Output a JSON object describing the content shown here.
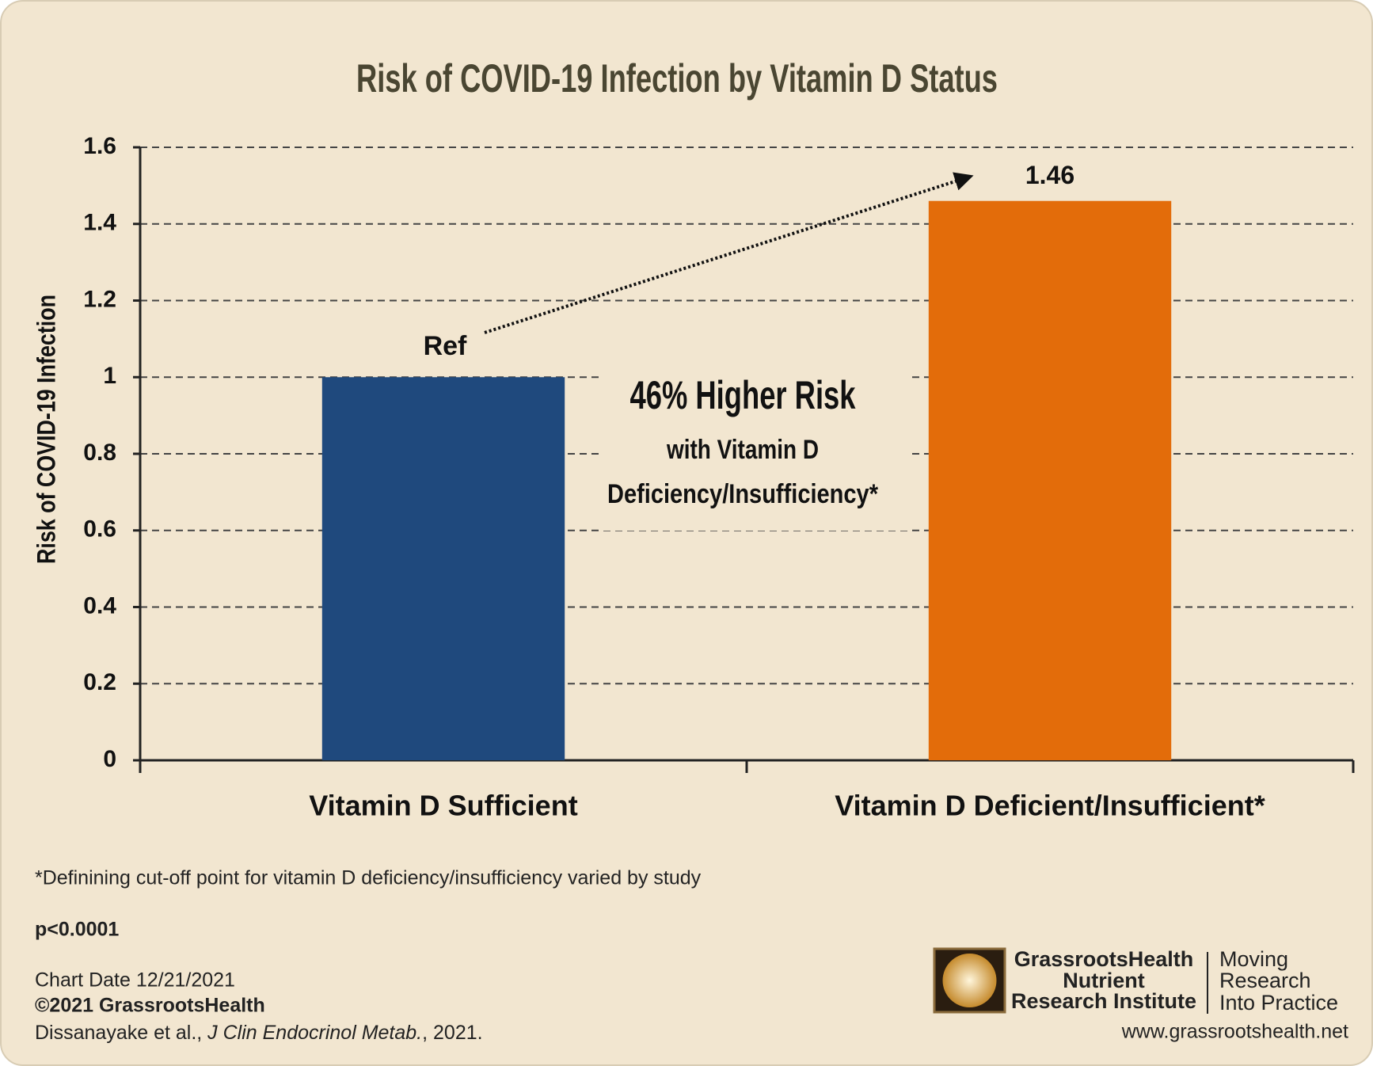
{
  "chart_data": {
    "type": "bar",
    "title": "Risk of COVID-19 Infection by Vitamin D Status",
    "y_label": "Risk of COVID-19 Infection",
    "categories": [
      "Vitamin D Sufficient",
      "Vitamin D Deficient/Insufficient*"
    ],
    "values": [
      1,
      1.46
    ],
    "colors": [
      "#1f497d",
      "#e36c0a"
    ],
    "ylim": [
      0,
      1.6
    ],
    "yticks": [
      0,
      0.2,
      0.4,
      0.6,
      0.8,
      1,
      1.2,
      1.4,
      1.6
    ],
    "grid": true,
    "annotations": {
      "ref": "Ref",
      "headline": "46% Higher Risk",
      "line1": "with Vitamin D",
      "line2": "Deficiency/Insufficiency*"
    }
  },
  "footer": {
    "footnote": "*Definining cut-off point for vitamin D deficiency/insufficiency varied by study",
    "pvalue": "p<0.0001",
    "chart_date": "Chart Date 12/21/2021",
    "copyright": "©2021 GrassrootsHealth",
    "citation_authors": "Dissanayake et al., ",
    "citation_journal": "J Clin Endocrinol Metab.",
    "citation_year": ", 2021."
  },
  "logo": {
    "name": [
      "GrassrootsHealth",
      "Nutrient",
      "Research Institute"
    ],
    "tagline": [
      "Moving",
      "Research",
      "Into Practice"
    ],
    "url": "www.grassrootshealth.net"
  }
}
